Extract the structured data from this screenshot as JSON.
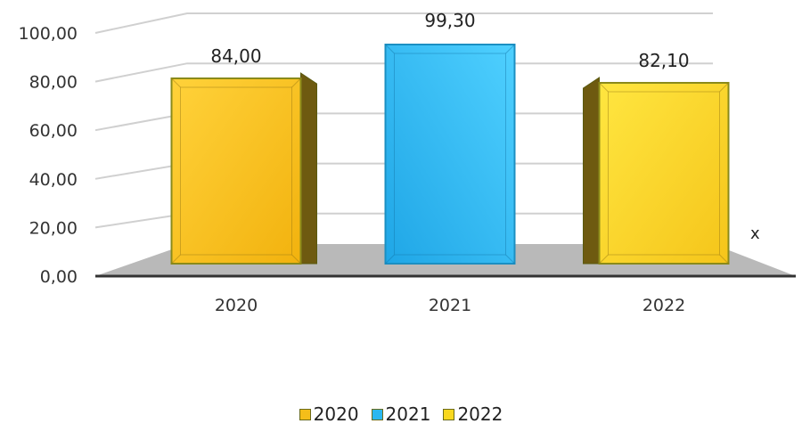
{
  "chart_data": {
    "type": "bar",
    "categories": [
      "2020",
      "2021",
      "2022"
    ],
    "values": [
      84.0,
      99.3,
      82.1
    ],
    "data_labels": [
      "84,00",
      "99,30",
      "82,10"
    ],
    "ylim": [
      0,
      100
    ],
    "y_ticks": [
      "0,00",
      "20,00",
      "40,00",
      "60,00",
      "80,00",
      "100,00"
    ],
    "annotation": "x",
    "legend": {
      "position": "bottom",
      "items": [
        {
          "label": "2020",
          "color": "#F5BE19"
        },
        {
          "label": "2021",
          "color": "#2BB7F0"
        },
        {
          "label": "2022",
          "color": "#F9D81F"
        }
      ]
    },
    "bar_colors": [
      "#F5BE19",
      "#2BB7F0",
      "#F9D81F"
    ],
    "bar_side_color": "#6E5A10",
    "floor_color": "#B9B9B9",
    "grid": true
  }
}
